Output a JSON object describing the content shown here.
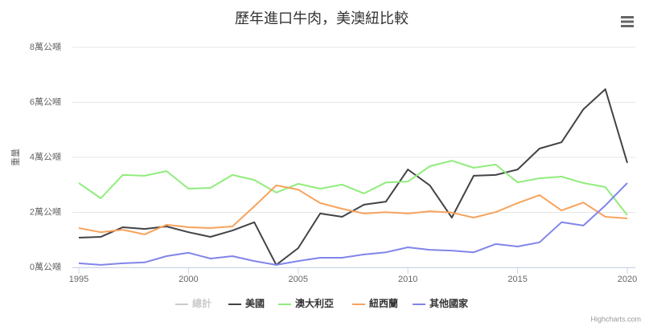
{
  "chart_data": {
    "type": "line",
    "title": "歷年進口牛肉，美澳紐比較",
    "y_axis_label": "重量",
    "credits": "Highcharts.com",
    "x": [
      1995,
      1996,
      1997,
      1998,
      1999,
      2000,
      2001,
      2002,
      2003,
      2004,
      2005,
      2006,
      2007,
      2008,
      2009,
      2010,
      2011,
      2012,
      2013,
      2014,
      2015,
      2016,
      2017,
      2018,
      2019,
      2020
    ],
    "xlim": [
      1995,
      2020
    ],
    "xticks": [
      1995,
      2000,
      2005,
      2010,
      2015,
      2020
    ],
    "ylim": [
      0,
      80000
    ],
    "yticks": [
      {
        "value": 0,
        "label": "0萬公噸"
      },
      {
        "value": 20000,
        "label": "2萬公噸"
      },
      {
        "value": 40000,
        "label": "4萬公噸"
      },
      {
        "value": 60000,
        "label": "6萬公噸"
      },
      {
        "value": 80000,
        "label": "8萬公噸"
      }
    ],
    "grid": true,
    "legend": "bottom",
    "series": [
      {
        "name": "總計",
        "color": "#7cb5ec",
        "visible": false,
        "values": [
          null,
          null,
          null,
          null,
          null,
          null,
          null,
          null,
          null,
          null,
          null,
          null,
          null,
          null,
          null,
          null,
          null,
          null,
          null,
          null,
          null,
          null,
          null,
          null,
          null,
          null
        ]
      },
      {
        "name": "美國",
        "color": "#434348",
        "visible": true,
        "values": [
          10800,
          11100,
          14600,
          14000,
          14900,
          12800,
          11100,
          13400,
          16400,
          900,
          7000,
          19600,
          18400,
          22800,
          23900,
          35600,
          29800,
          18100,
          33300,
          33600,
          35600,
          43200,
          45500,
          57500,
          64800,
          38000
        ]
      },
      {
        "name": "澳大利亞",
        "color": "#90ed7d",
        "visible": true,
        "values": [
          30700,
          25100,
          33600,
          33300,
          35000,
          28600,
          28900,
          33600,
          31800,
          27200,
          30400,
          28600,
          30100,
          26900,
          30900,
          31200,
          36800,
          38800,
          36200,
          37400,
          30900,
          32400,
          33000,
          30700,
          29200,
          19000
        ]
      },
      {
        "name": "紐西蘭",
        "color": "#f7a35c",
        "visible": true,
        "values": [
          14300,
          12800,
          13700,
          12000,
          15500,
          14600,
          14300,
          14900,
          22200,
          29800,
          28300,
          23400,
          21300,
          19600,
          20100,
          19600,
          20400,
          19900,
          18100,
          20100,
          23400,
          26300,
          20700,
          23600,
          18400,
          17800
        ]
      },
      {
        "name": "其他國家",
        "color": "#8085e9",
        "visible": true,
        "values": [
          1500,
          900,
          1500,
          1800,
          4100,
          5300,
          3200,
          4100,
          2300,
          900,
          2300,
          3500,
          3500,
          4700,
          5500,
          7300,
          6400,
          6100,
          5500,
          8500,
          7600,
          9100,
          16400,
          15200,
          22500,
          30700
        ]
      }
    ]
  }
}
